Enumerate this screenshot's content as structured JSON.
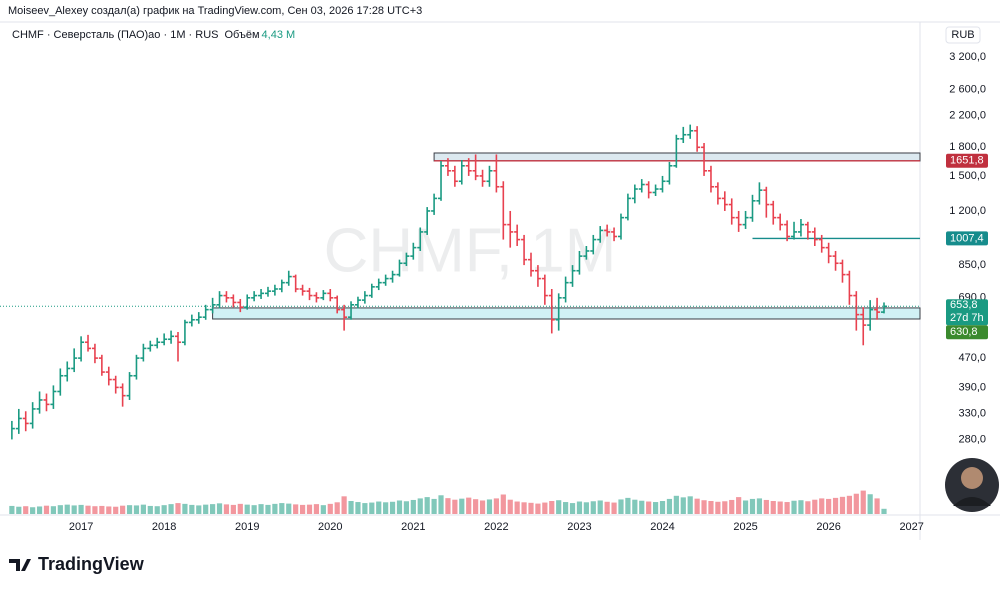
{
  "header": {
    "author_line": "Moiseev_Alexey создал(а) график на TradingView.com, Сен 03, 2026 17:28 UTC+3",
    "logo": "TradingView"
  },
  "chart_data": {
    "type": "ohlc_bars",
    "legend": "CHMF · Северсталь (ПАО)ао · 1M · RUS",
    "volume_label": "Объём",
    "volume_value": "4,43 M",
    "watermark": "CHMF, 1M",
    "currency": "RUB",
    "log": true,
    "grid": false,
    "up_color": "#1a9a82",
    "down_color": "#e8414f",
    "xlim": [
      2016.12,
      2027.1
    ],
    "xticks": [
      2017,
      2018,
      2019,
      2020,
      2021,
      2022,
      2023,
      2024,
      2025,
      2026,
      2027
    ],
    "ylim": [
      173,
      3454
    ],
    "yticks": [
      {
        "value": 280,
        "label": "280,0"
      },
      {
        "value": 330,
        "label": "330,0"
      },
      {
        "value": 390,
        "label": "390,0"
      },
      {
        "value": 470,
        "label": "470,0"
      },
      {
        "value": 690,
        "label": "690,0"
      },
      {
        "value": 850,
        "label": "850,0"
      },
      {
        "value": 1200,
        "label": "1 200,0"
      },
      {
        "value": 1500,
        "label": "1 500,0"
      },
      {
        "value": 1800,
        "label": "1 800,0"
      },
      {
        "value": 2200,
        "label": "2 200,0"
      },
      {
        "value": 2600,
        "label": "2 600,0"
      },
      {
        "value": 3200,
        "label": "3 200,0"
      }
    ],
    "x": [
      "2016-03",
      "2016-04",
      "2016-05",
      "2016-06",
      "2016-07",
      "2016-08",
      "2016-09",
      "2016-10",
      "2016-11",
      "2016-12",
      "2017-01",
      "2017-02",
      "2017-03",
      "2017-04",
      "2017-05",
      "2017-06",
      "2017-07",
      "2017-08",
      "2017-09",
      "2017-10",
      "2017-11",
      "2017-12",
      "2018-01",
      "2018-02",
      "2018-03",
      "2018-04",
      "2018-05",
      "2018-06",
      "2018-07",
      "2018-08",
      "2018-09",
      "2018-10",
      "2018-11",
      "2018-12",
      "2019-01",
      "2019-02",
      "2019-03",
      "2019-04",
      "2019-05",
      "2019-06",
      "2019-07",
      "2019-08",
      "2019-09",
      "2019-10",
      "2019-11",
      "2019-12",
      "2020-01",
      "2020-02",
      "2020-03",
      "2020-04",
      "2020-05",
      "2020-06",
      "2020-07",
      "2020-08",
      "2020-09",
      "2020-10",
      "2020-11",
      "2020-12",
      "2021-01",
      "2021-02",
      "2021-03",
      "2021-04",
      "2021-05",
      "2021-06",
      "2021-07",
      "2021-08",
      "2021-09",
      "2021-10",
      "2021-11",
      "2021-12",
      "2022-01",
      "2022-02",
      "2022-03",
      "2022-04",
      "2022-05",
      "2022-06",
      "2022-07",
      "2022-08",
      "2022-09",
      "2022-10",
      "2022-11",
      "2022-12",
      "2023-01",
      "2023-02",
      "2023-03",
      "2023-04",
      "2023-05",
      "2023-06",
      "2023-07",
      "2023-08",
      "2023-09",
      "2023-10",
      "2023-11",
      "2023-12",
      "2024-01",
      "2024-02",
      "2024-03",
      "2024-04",
      "2024-05",
      "2024-06",
      "2024-07",
      "2024-08",
      "2024-09",
      "2024-10",
      "2024-11",
      "2024-12",
      "2025-01",
      "2025-02",
      "2025-03",
      "2025-04",
      "2025-05",
      "2025-06",
      "2025-07",
      "2025-08",
      "2025-09",
      "2025-10",
      "2025-11",
      "2025-12",
      "2026-01",
      "2026-02",
      "2026-03",
      "2026-04",
      "2026-05",
      "2026-06",
      "2026-07",
      "2026-08",
      "2026-09"
    ],
    "close": [
      300,
      320,
      310,
      340,
      360,
      350,
      380,
      420,
      440,
      470,
      520,
      500,
      470,
      430,
      410,
      390,
      370,
      420,
      470,
      500,
      510,
      520,
      530,
      540,
      520,
      590,
      600,
      610,
      640,
      660,
      700,
      690,
      670,
      650,
      690,
      700,
      710,
      720,
      730,
      760,
      790,
      730,
      720,
      700,
      690,
      710,
      690,
      640,
      610,
      660,
      680,
      700,
      740,
      760,
      780,
      800,
      860,
      900,
      950,
      1050,
      1200,
      1300,
      1600,
      1550,
      1450,
      1600,
      1550,
      1500,
      1450,
      1550,
      1400,
      1100,
      1050,
      1000,
      880,
      820,
      780,
      700,
      600,
      690,
      760,
      820,
      900,
      930,
      1000,
      1060,
      1050,
      1020,
      1150,
      1300,
      1380,
      1420,
      1350,
      1380,
      1450,
      1600,
      1900,
      1950,
      2000,
      1800,
      1550,
      1400,
      1300,
      1250,
      1150,
      1100,
      1150,
      1280,
      1370,
      1250,
      1150,
      1100,
      1020,
      1050,
      1100,
      1050,
      1000,
      950,
      900,
      860,
      800,
      700,
      620,
      580,
      640,
      630,
      653.8
    ],
    "high": [
      315,
      340,
      335,
      355,
      380,
      375,
      395,
      440,
      460,
      500,
      540,
      545,
      515,
      480,
      445,
      420,
      400,
      430,
      480,
      515,
      525,
      535,
      550,
      560,
      555,
      600,
      620,
      630,
      660,
      690,
      720,
      720,
      705,
      685,
      705,
      720,
      730,
      740,
      750,
      775,
      820,
      800,
      750,
      735,
      715,
      725,
      730,
      700,
      660,
      675,
      695,
      720,
      755,
      780,
      800,
      820,
      880,
      920,
      980,
      1080,
      1230,
      1340,
      1650,
      1680,
      1600,
      1660,
      1680,
      1720,
      1560,
      1600,
      1720,
      1450,
      1200,
      1100,
      1030,
      920,
      850,
      800,
      730,
      710,
      790,
      850,
      930,
      960,
      1030,
      1090,
      1100,
      1080,
      1180,
      1340,
      1420,
      1470,
      1450,
      1420,
      1500,
      1640,
      1950,
      2050,
      2080,
      2060,
      1850,
      1600,
      1440,
      1360,
      1300,
      1200,
      1200,
      1330,
      1440,
      1400,
      1280,
      1180,
      1130,
      1120,
      1140,
      1120,
      1080,
      1030,
      980,
      930,
      880,
      820,
      720,
      650,
      680,
      690,
      670
    ],
    "low": [
      280,
      290,
      295,
      300,
      330,
      335,
      340,
      370,
      405,
      430,
      460,
      490,
      455,
      420,
      395,
      375,
      345,
      360,
      410,
      460,
      490,
      500,
      510,
      515,
      460,
      510,
      575,
      585,
      600,
      625,
      645,
      670,
      650,
      630,
      640,
      675,
      685,
      695,
      700,
      715,
      745,
      715,
      700,
      680,
      670,
      680,
      675,
      625,
      560,
      600,
      645,
      665,
      690,
      725,
      745,
      760,
      790,
      845,
      880,
      930,
      1030,
      1170,
      1280,
      1500,
      1400,
      1420,
      1500,
      1460,
      1400,
      1400,
      1350,
      1000,
      950,
      960,
      850,
      790,
      740,
      660,
      550,
      560,
      670,
      740,
      800,
      880,
      910,
      980,
      1020,
      990,
      1000,
      1130,
      1260,
      1350,
      1300,
      1320,
      1350,
      1420,
      1580,
      1850,
      1900,
      1750,
      1500,
      1350,
      1250,
      1200,
      1100,
      1050,
      1070,
      1120,
      1250,
      1150,
      1100,
      1060,
      990,
      1000,
      1020,
      1000,
      960,
      920,
      860,
      820,
      760,
      660,
      560,
      510,
      560,
      600,
      625
    ],
    "volume": [
      3.1,
      2.8,
      3.0,
      2.6,
      2.9,
      3.2,
      3.0,
      3.4,
      3.6,
      3.3,
      3.5,
      3.2,
      3.0,
      3.1,
      2.9,
      2.8,
      3.2,
      3.4,
      3.3,
      3.6,
      3.1,
      3.0,
      3.4,
      3.8,
      4.2,
      3.9,
      3.5,
      3.3,
      3.6,
      3.8,
      4.1,
      3.7,
      3.5,
      3.9,
      3.6,
      3.4,
      3.8,
      3.5,
      3.9,
      4.2,
      4.0,
      3.7,
      3.5,
      3.6,
      3.8,
      3.4,
      3.9,
      4.5,
      6.8,
      5.0,
      4.6,
      4.2,
      4.4,
      4.8,
      4.5,
      4.7,
      5.2,
      4.9,
      5.4,
      6.0,
      6.5,
      5.8,
      7.2,
      6.1,
      5.5,
      5.9,
      6.3,
      5.7,
      5.2,
      5.6,
      6.0,
      7.5,
      5.5,
      4.8,
      4.5,
      4.3,
      4.0,
      4.4,
      5.0,
      5.3,
      4.6,
      4.2,
      4.8,
      4.5,
      4.9,
      5.2,
      4.7,
      4.4,
      5.6,
      6.2,
      5.5,
      5.1,
      4.8,
      4.6,
      5.0,
      5.8,
      7.0,
      6.4,
      6.8,
      5.9,
      5.3,
      5.0,
      4.7,
      4.9,
      5.4,
      6.5,
      5.2,
      5.8,
      6.0,
      5.4,
      5.0,
      4.8,
      4.6,
      5.1,
      5.3,
      4.9,
      5.5,
      6.0,
      5.8,
      6.2,
      6.6,
      7.0,
      7.8,
      9.0,
      7.6,
      6.0,
      2.0
    ],
    "volume_lim": [
      0,
      10
    ],
    "zones": [
      {
        "from": "2021-04",
        "top": 1736,
        "bottom": 1650,
        "color": "#d3e4ec"
      },
      {
        "from": "2018-08",
        "top": 647,
        "bottom": 603,
        "color": "#c6eef3"
      }
    ],
    "levels": [
      {
        "value": 1651.8,
        "label": "1651,8",
        "color": "#c0303e",
        "from": "2021-04"
      },
      {
        "value": 1007.4,
        "label": "1007,4",
        "color": "#168c8c",
        "from": "2025-02"
      }
    ],
    "last_price": {
      "value": 653.8,
      "label": "653,8",
      "color": "#1a9a82",
      "countdown": "27d 7h"
    },
    "extra_label": {
      "value": 630.8,
      "label": "630,8",
      "color": "#3b8a2e"
    }
  }
}
